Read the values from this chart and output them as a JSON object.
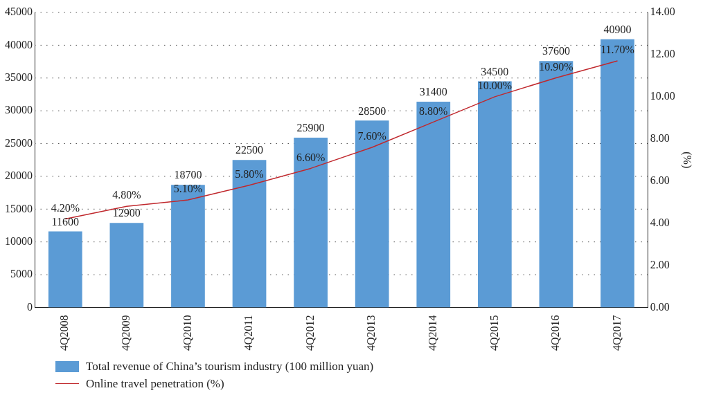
{
  "chart_data": {
    "type": "bar",
    "categories": [
      "4Q2008",
      "4Q2009",
      "4Q2010",
      "4Q2011",
      "4Q2012",
      "4Q2013",
      "4Q2014",
      "4Q2015",
      "4Q2016",
      "4Q2017"
    ],
    "series": [
      {
        "name": "Total revenue of China’s tourism industry (100 million yuan)",
        "color": "#5b9bd5",
        "values": [
          11600,
          12900,
          18700,
          22500,
          25900,
          28500,
          31400,
          34500,
          37600,
          40900
        ],
        "value_labels": [
          "11600",
          "12900",
          "18700",
          "22500",
          "25900",
          "28500",
          "31400",
          "34500",
          "37600",
          "40900"
        ]
      },
      {
        "name": "Online travel penetration (%)",
        "type": "line",
        "axis": "y2",
        "color": "#c0282d",
        "values": [
          4.2,
          4.8,
          5.1,
          5.8,
          6.6,
          7.6,
          8.8,
          10.0,
          10.9,
          11.7
        ],
        "value_labels": [
          "4.20%",
          "4.80%",
          "5.10%",
          "5.80%",
          "6.60%",
          "7.60%",
          "8.80%",
          "10.00%",
          "10.90%",
          "11.70%"
        ]
      }
    ],
    "ylim": [
      0,
      45000
    ],
    "yticks": [
      0,
      5000,
      10000,
      15000,
      20000,
      25000,
      30000,
      35000,
      40000,
      45000
    ],
    "y2label": "(%)",
    "y2lim": [
      0,
      14
    ],
    "y2ticks": [
      {
        "value": 0,
        "label": "0.00"
      },
      {
        "value": 2,
        "label": "2.00"
      },
      {
        "value": 4,
        "label": "4.00"
      },
      {
        "value": 6,
        "label": "6.00"
      },
      {
        "value": 8,
        "label": "8.00"
      },
      {
        "value": 10,
        "label": "10.00"
      },
      {
        "value": 12,
        "label": "12.00"
      },
      {
        "value": 14,
        "label": "14.00"
      }
    ],
    "grid": "y",
    "legend": "bottom left",
    "marker": "none",
    "line_style": "solid"
  }
}
